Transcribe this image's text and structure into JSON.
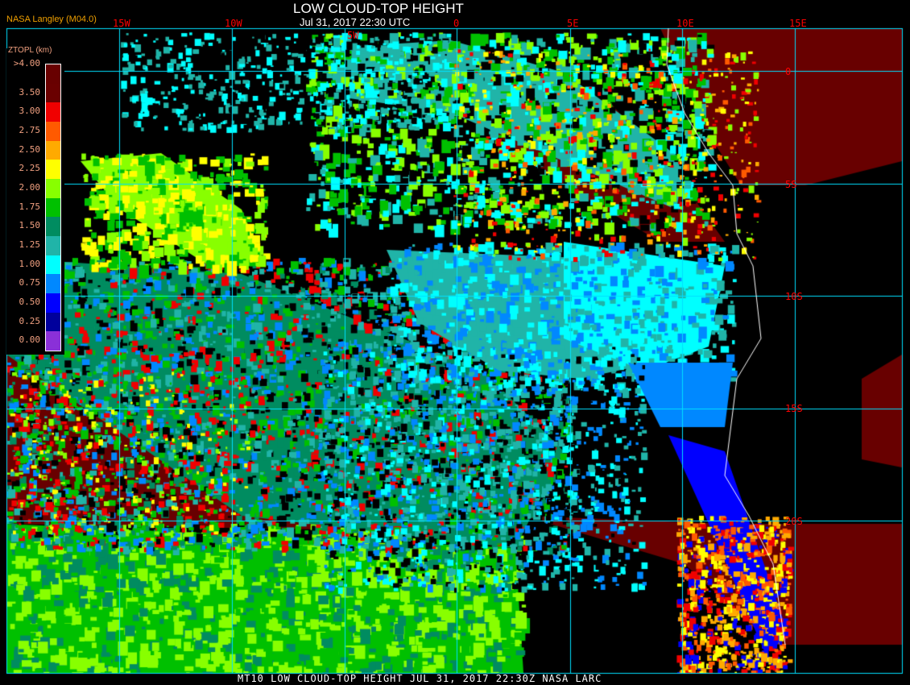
{
  "header": {
    "title": "LOW CLOUD-TOP HEIGHT",
    "subtitle": "Jul 31, 2017 22:30 UTC",
    "agency": "NASA Langley (M04.0)"
  },
  "footer": "MT10  LOW CLOUD-TOP HEIGHT   JUL 31, 2017 22:30Z   NASA LARC",
  "longitude_labels": [
    "15W",
    "10W",
    "5W",
    "0",
    "5E",
    "10E",
    "15E"
  ],
  "latitude_labels": [
    "0",
    "5S",
    "10S",
    "15S",
    "20S"
  ],
  "legend": {
    "title": "ZTOPL (km)",
    "levels": [
      {
        "label": ">4.00",
        "color": "#680000"
      },
      {
        "label": "3.50",
        "color": "#6a0000"
      },
      {
        "label": "3.00",
        "color": "#f00000"
      },
      {
        "label": "2.75",
        "color": "#ff5a00"
      },
      {
        "label": "2.50",
        "color": "#ffaa00"
      },
      {
        "label": "2.25",
        "color": "#ffff00"
      },
      {
        "label": "2.00",
        "color": "#88ff00"
      },
      {
        "label": "1.75",
        "color": "#00c000"
      },
      {
        "label": "1.50",
        "color": "#008c60"
      },
      {
        "label": "1.25",
        "color": "#20b4a8"
      },
      {
        "label": "1.00",
        "color": "#00ffff"
      },
      {
        "label": "0.75",
        "color": "#0088ff"
      },
      {
        "label": "0.50",
        "color": "#0000ff"
      },
      {
        "label": "0.25",
        "color": "#00009c"
      },
      {
        "label": "0.00",
        "color": "#8a30d8"
      }
    ]
  },
  "colors": {
    "grid": "#00e0ff",
    "coastline": "#ffffff",
    "labels": "#ff0000"
  }
}
